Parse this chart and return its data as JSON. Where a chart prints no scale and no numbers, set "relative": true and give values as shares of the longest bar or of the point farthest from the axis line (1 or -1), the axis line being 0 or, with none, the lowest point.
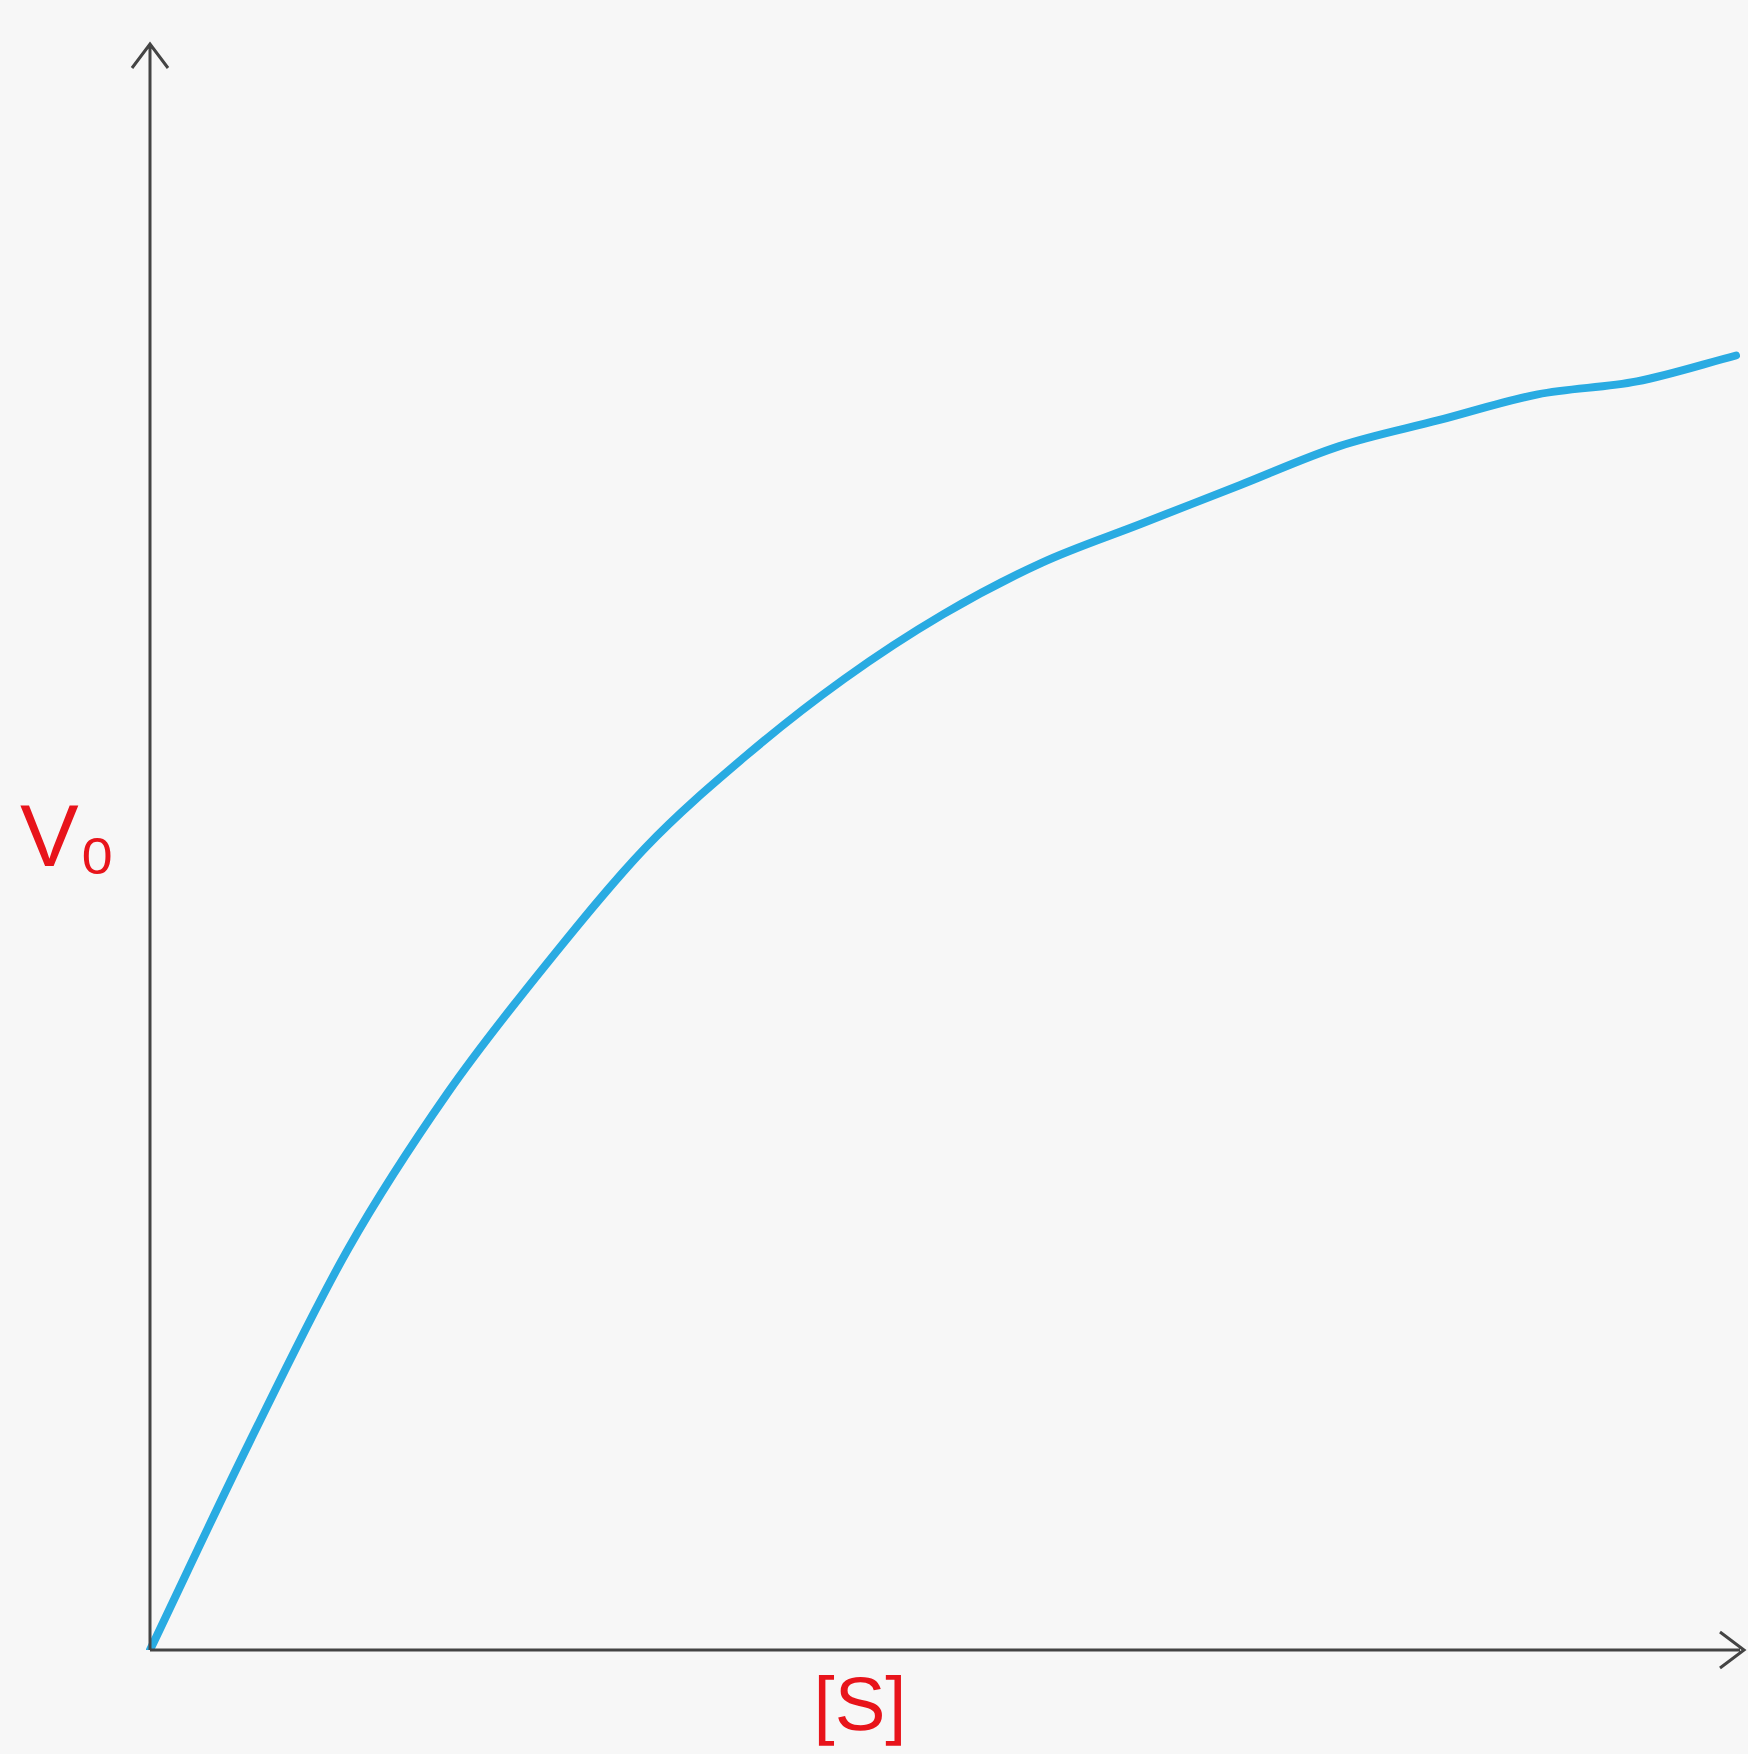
{
  "chart_data": {
    "type": "line",
    "relative": true,
    "xlabel": "[S]",
    "ylabel": "V₀",
    "categories": [
      null,
      null,
      null,
      null,
      null,
      null,
      null,
      null,
      null,
      null,
      null,
      null,
      null,
      null,
      null,
      null,
      null
    ],
    "series": [
      {
        "color": "#29abe2",
        "values": [
          0,
          0.16,
          0.31,
          0.43,
          0.53,
          0.62,
          0.69,
          0.75,
          0.8,
          0.84,
          0.87,
          0.9,
          0.93,
          0.95,
          0.97,
          0.98,
          1
        ]
      }
    ],
    "marker": "none",
    "line_style": "solid",
    "legend": false
  }
}
